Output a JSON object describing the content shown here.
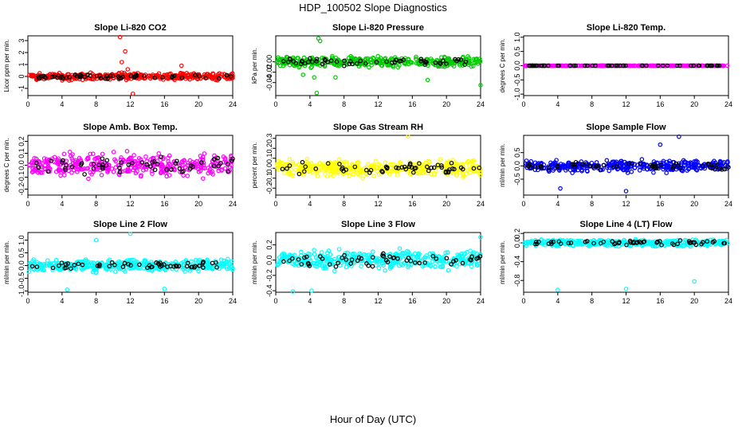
{
  "figure": {
    "title": "HDP_100502  Slope Diagnostics",
    "xlabel": "Hour of Day (UTC)"
  },
  "chart_data": [
    {
      "type": "scatter",
      "title": "Slope Li-820 CO2",
      "ylabel": "Licor ppm per min.",
      "xlim": [
        0,
        24
      ],
      "ylim": [
        -1.6,
        3.4
      ],
      "xticks": [
        0,
        4,
        8,
        12,
        16,
        20,
        24
      ],
      "yticks": [
        -1,
        0,
        1,
        2,
        3
      ],
      "color": "#ff0000",
      "spread": 0.28,
      "outliers": [
        [
          10.8,
          3.3
        ],
        [
          11.4,
          2.1
        ],
        [
          11.0,
          1.2
        ],
        [
          11.7,
          0.6
        ],
        [
          12.3,
          -1.45
        ],
        [
          18.0,
          0.9
        ]
      ]
    },
    {
      "type": "scatter",
      "title": "Slope Li-820 Pressure",
      "ylabel": "kPa per min.",
      "xlim": [
        0,
        24
      ],
      "ylim": [
        -0.065,
        0.05
      ],
      "xticks": [
        0,
        4,
        8,
        12,
        16,
        20,
        24
      ],
      "yticks": [
        -0.04,
        -0.02,
        0.0
      ],
      "color": "#00cc00",
      "spread": 0.01,
      "outliers": [
        [
          4.8,
          -0.06
        ],
        [
          5.0,
          0.045
        ],
        [
          5.2,
          0.04
        ],
        [
          3.2,
          -0.025
        ],
        [
          4.5,
          -0.03
        ],
        [
          24.0,
          -0.045
        ],
        [
          7.0,
          -0.03
        ],
        [
          17.8,
          -0.035
        ]
      ]
    },
    {
      "type": "scatter",
      "title": "Slope Li-820 Temp.",
      "ylabel": "degrees C per min.",
      "xlim": [
        0,
        24
      ],
      "ylim": [
        -1.05,
        1.05
      ],
      "xticks": [
        0,
        4,
        8,
        12,
        16,
        20,
        24
      ],
      "yticks": [
        -1.0,
        -0.5,
        0.0,
        0.5,
        1.0
      ],
      "color": "#ff00ff",
      "spread": 0.0,
      "outliers": []
    },
    {
      "type": "scatter",
      "title": "Slope Amb. Box Temp.",
      "ylabel": "degrees C per min.",
      "xlim": [
        0,
        24
      ],
      "ylim": [
        -0.25,
        0.25
      ],
      "xticks": [
        0,
        4,
        8,
        12,
        16,
        20,
        24
      ],
      "yticks": [
        -0.2,
        -0.1,
        0.0,
        0.1,
        0.2
      ],
      "color": "#ff00ff",
      "spread": 0.1,
      "outliers": []
    },
    {
      "type": "scatter",
      "title": "Slope Gas Stream RH",
      "ylabel": "percent per min.",
      "xlim": [
        0,
        24
      ],
      "ylim": [
        -0.27,
        0.33
      ],
      "xticks": [
        0,
        4,
        8,
        12,
        16,
        20,
        24
      ],
      "yticks": [
        -0.2,
        -0.1,
        0.0,
        0.1,
        0.2,
        0.3
      ],
      "color": "#ffff00",
      "spread": 0.08,
      "outliers": [
        [
          15.5,
          0.32
        ]
      ]
    },
    {
      "type": "scatter",
      "title": "Slope Sample Flow",
      "ylabel": "ml/min per min.",
      "xlim": [
        0,
        24
      ],
      "ylim": [
        -1.1,
        1.15
      ],
      "xticks": [
        0,
        4,
        8,
        12,
        16,
        20,
        24
      ],
      "yticks": [
        -0.5,
        0.0,
        0.5
      ],
      "color": "#0000ff",
      "spread": 0.22,
      "outliers": [
        [
          18.2,
          1.1
        ],
        [
          16.0,
          0.8
        ],
        [
          12.0,
          -0.95
        ],
        [
          4.3,
          -0.85
        ]
      ]
    },
    {
      "type": "scatter",
      "title": "Slope Line 2 Flow",
      "ylabel": "ml/min per min.",
      "xlim": [
        0,
        24
      ],
      "ylim": [
        -1.05,
        1.3
      ],
      "xticks": [
        0,
        4,
        8,
        12,
        16,
        20,
        24
      ],
      "yticks": [
        -1.0,
        -0.5,
        0.0,
        0.5,
        1.0
      ],
      "color": "#00ffff",
      "spread": 0.22,
      "outliers": [
        [
          4.6,
          -0.95
        ],
        [
          12.0,
          1.25
        ],
        [
          16.0,
          -0.92
        ],
        [
          8.0,
          1.0
        ]
      ]
    },
    {
      "type": "scatter",
      "title": "Slope Line 3 Flow",
      "ylabel": "ml/min per min.",
      "xlim": [
        0,
        24
      ],
      "ylim": [
        -0.42,
        0.36
      ],
      "xticks": [
        0,
        4,
        8,
        12,
        16,
        20,
        24
      ],
      "yticks": [
        -0.4,
        -0.2,
        0.0,
        0.2
      ],
      "color": "#00ffff",
      "spread": 0.12,
      "outliers": [
        [
          2.0,
          -0.41
        ],
        [
          4.2,
          -0.4
        ],
        [
          24.0,
          0.3
        ]
      ]
    },
    {
      "type": "scatter",
      "title": "Slope Line 4 (LT) Flow",
      "ylabel": "ml/min per min.",
      "xlim": [
        0,
        24
      ],
      "ylim": [
        -1.05,
        0.22
      ],
      "xticks": [
        0,
        4,
        8,
        12,
        16,
        20,
        24
      ],
      "yticks": [
        -0.8,
        -0.4,
        0.0,
        0.2
      ],
      "color": "#00ffff",
      "spread": 0.07,
      "outliers": [
        [
          4.0,
          -1.0
        ],
        [
          12.0,
          -0.98
        ],
        [
          20.0,
          -0.82
        ]
      ]
    }
  ]
}
